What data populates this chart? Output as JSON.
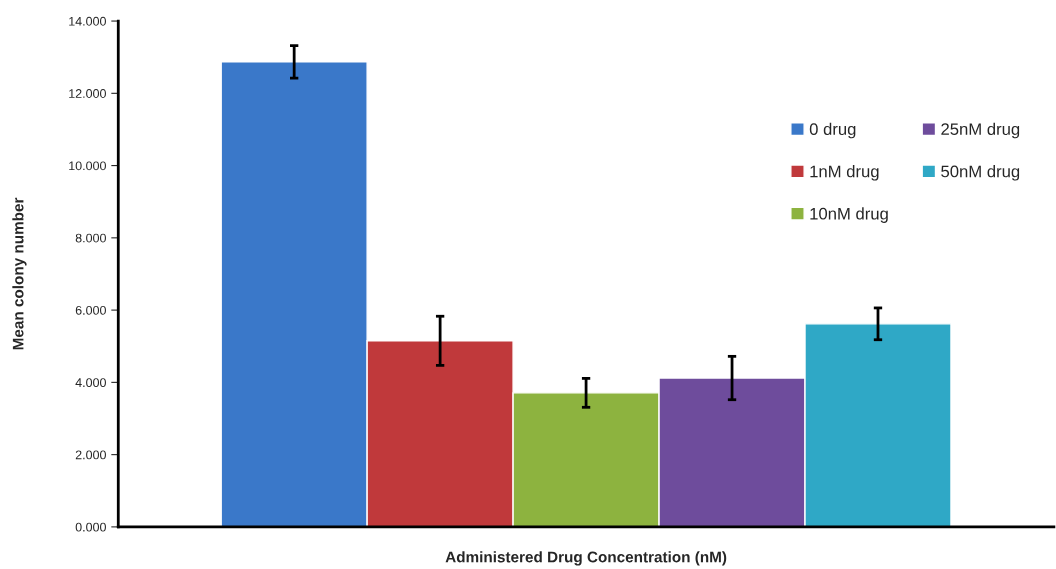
{
  "chart_data": {
    "type": "bar",
    "xlabel": "Administered Drug Concentration (nM)",
    "ylabel": "Mean colony number",
    "categories": [
      null
    ],
    "series": [
      {
        "name": "0 drug",
        "color": "#3a78c9",
        "values": [
          12.87
        ],
        "errors": [
          0.45
        ]
      },
      {
        "name": "1nM drug",
        "color": "#c0393b",
        "values": [
          5.15
        ],
        "errors": [
          0.68
        ]
      },
      {
        "name": "10nM drug",
        "color": "#8db33f",
        "values": [
          3.71
        ],
        "errors": [
          0.4
        ]
      },
      {
        "name": "25nM drug",
        "color": "#6e4c9c",
        "values": [
          4.12
        ],
        "errors": [
          0.6
        ]
      },
      {
        "name": "50nM drug",
        "color": "#2fa8c6",
        "values": [
          5.62
        ],
        "errors": [
          0.44
        ]
      }
    ],
    "ylim": [
      0,
      14
    ],
    "yticks": [
      {
        "value": 0,
        "label": "0.000"
      },
      {
        "value": 2,
        "label": "2.000"
      },
      {
        "value": 4,
        "label": "4.000"
      },
      {
        "value": 6,
        "label": "6.000"
      },
      {
        "value": 8,
        "label": "8.000"
      },
      {
        "value": 10,
        "label": "10.000"
      },
      {
        "value": 12,
        "label": "12.000"
      },
      {
        "value": 14,
        "label": "14.000"
      }
    ],
    "grid": false,
    "legend": "right"
  }
}
